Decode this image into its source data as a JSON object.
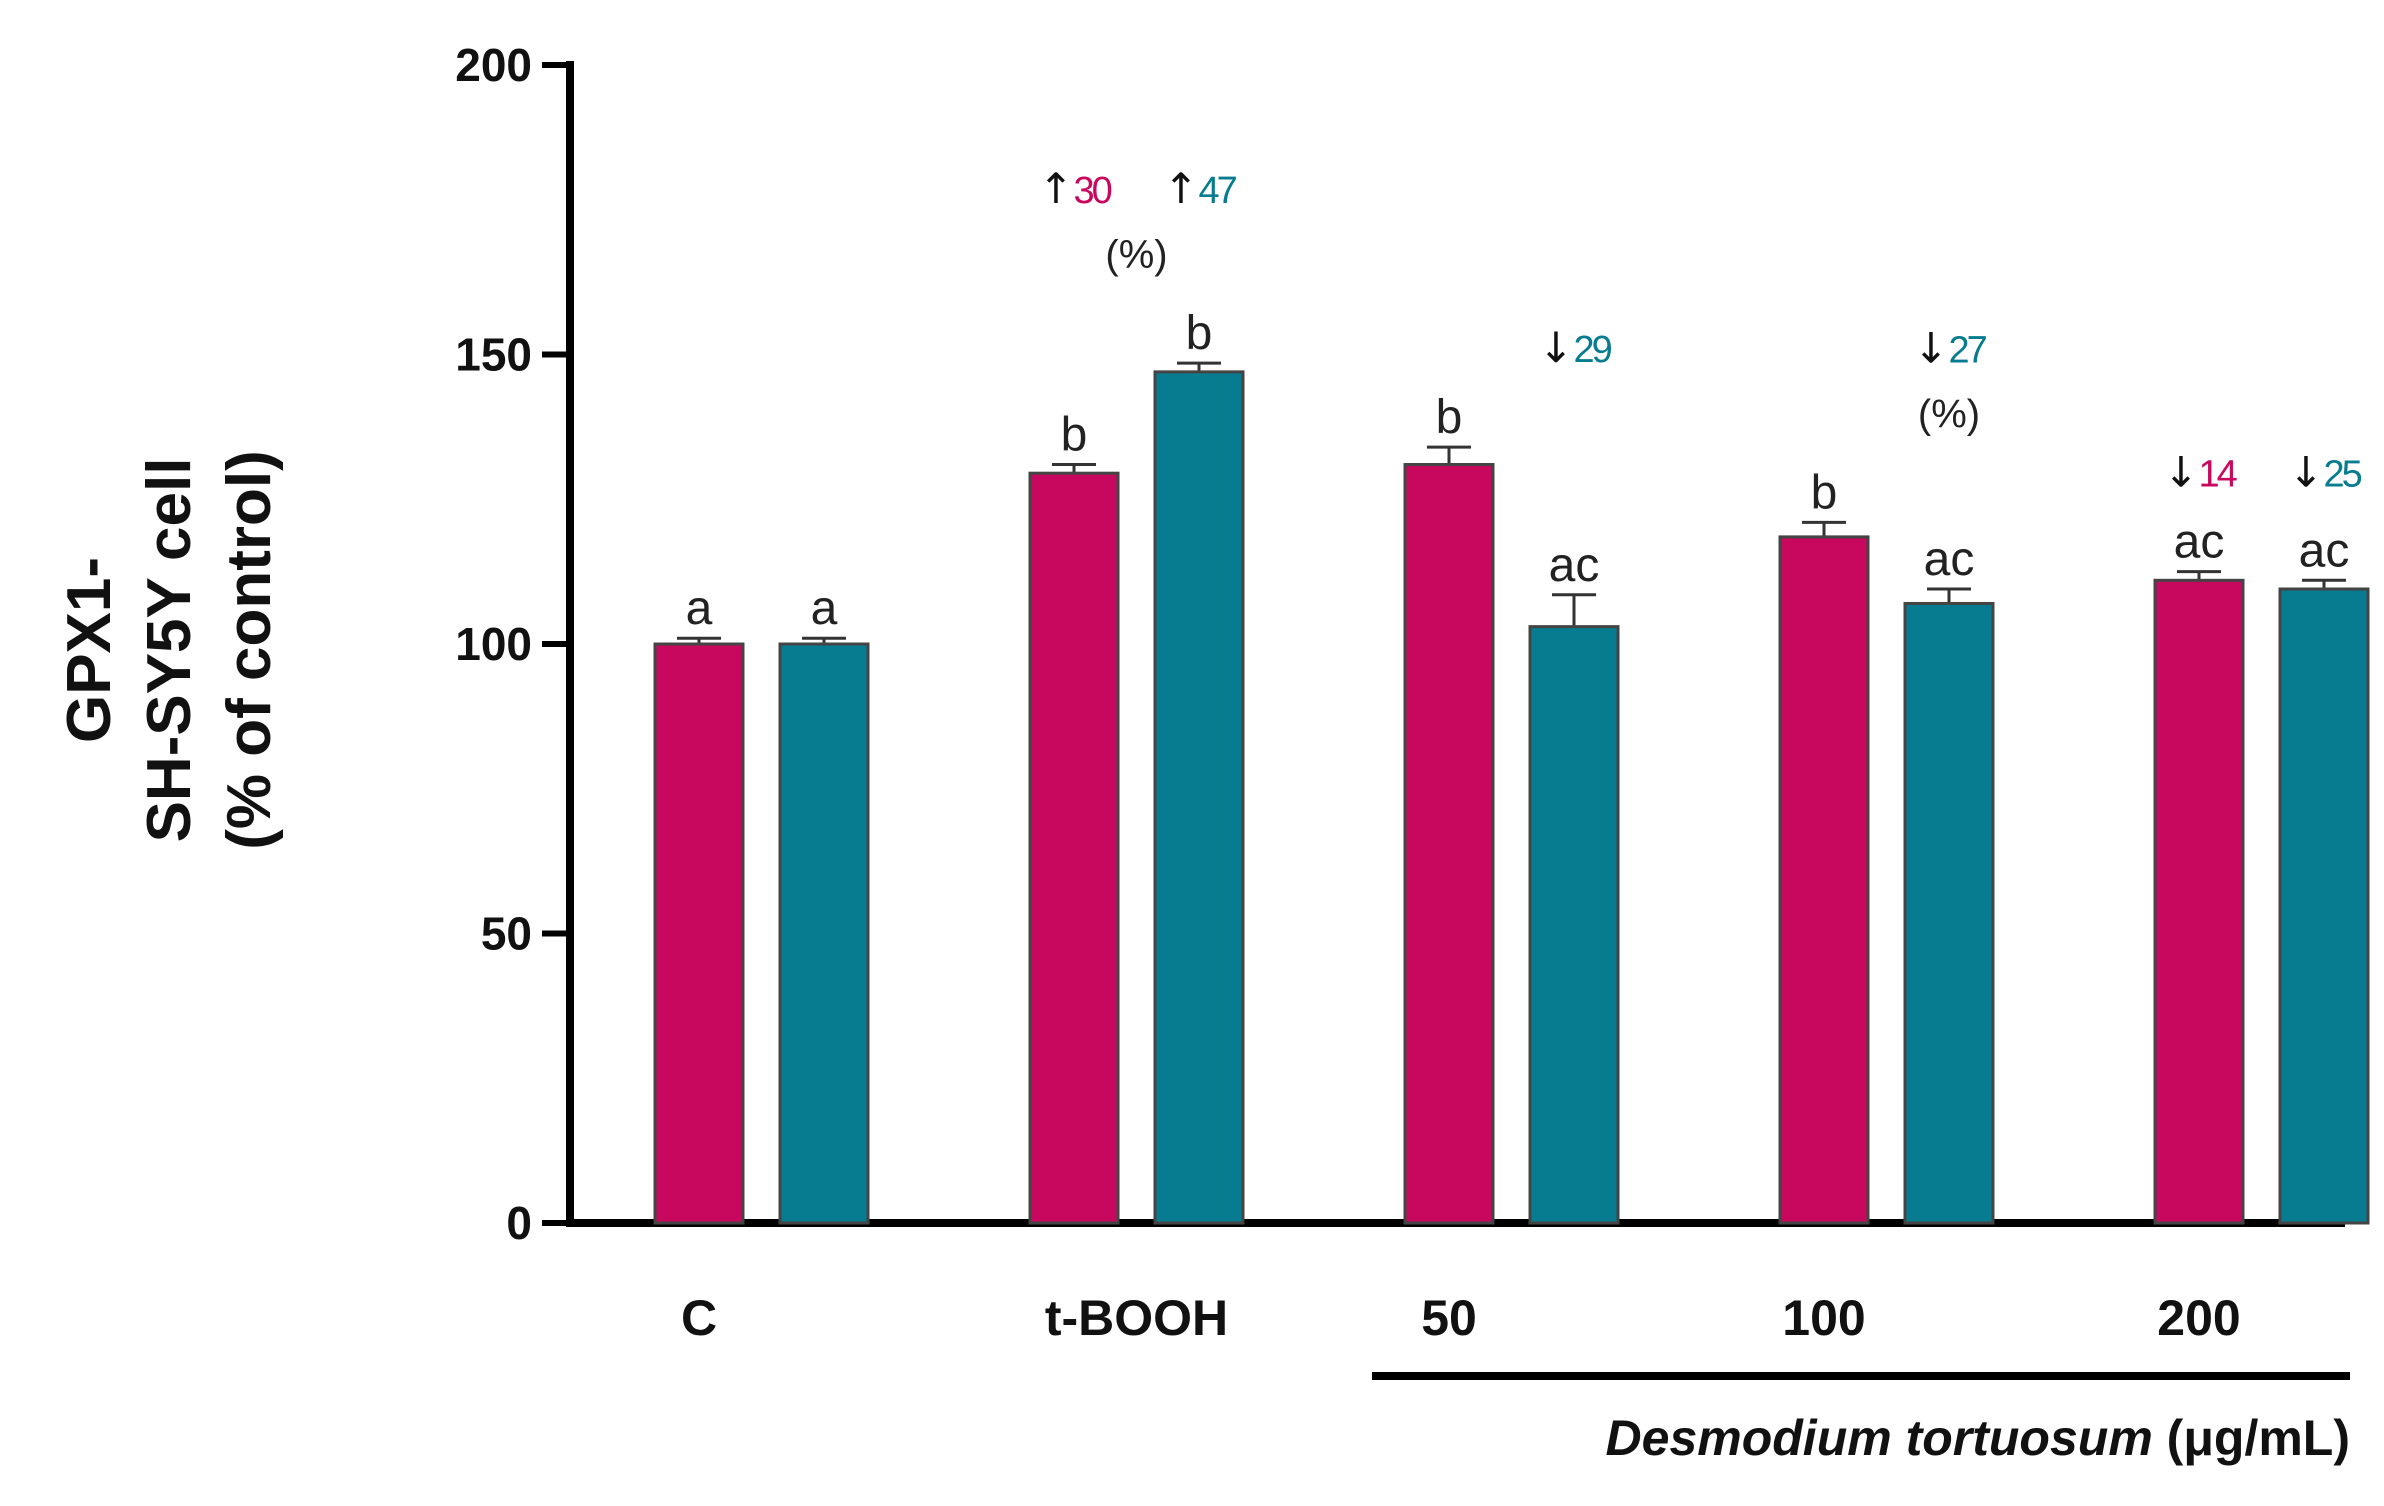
{
  "chart_data": {
    "type": "bar",
    "ylabel_lines": [
      "GPX1-",
      "SH-SY5Y cell",
      "(% of control)"
    ],
    "ylim": [
      0,
      200
    ],
    "yticks": [
      "0",
      "50",
      "100",
      "150",
      "200"
    ],
    "categories": [
      "C",
      "t-BOOH",
      "50",
      "100",
      "200"
    ],
    "xlabel_italic": "Desmodium tortuosum",
    "xlabel_unit": " (μg/mL)",
    "colors": {
      "magenta": "#c8075e",
      "teal": "#077c90"
    },
    "series": [
      {
        "color_key": "magenta",
        "values": [
          100,
          129.5,
          131,
          118.5,
          111
        ],
        "errors": [
          1,
          1.5,
          3,
          2.5,
          1.5
        ],
        "letters": [
          "a",
          "b",
          "b",
          "b",
          "ac"
        ]
      },
      {
        "color_key": "teal",
        "values": [
          100,
          147,
          103,
          107,
          109.5
        ],
        "errors": [
          1,
          1.5,
          5.5,
          2.5,
          1.5
        ],
        "letters": [
          "a",
          "b",
          "ac",
          "ac",
          "ac"
        ]
      }
    ],
    "annotations": [
      {
        "arrow": "↑",
        "value": "30",
        "color_key": "magenta",
        "group": 1,
        "series": 0
      },
      {
        "arrow": "↑",
        "value": "47",
        "color_key": "teal",
        "group": 1,
        "series": 1
      },
      {
        "arrow": "↓",
        "value": "29",
        "color_key": "teal",
        "group": 2,
        "series": 1
      },
      {
        "arrow": "↓",
        "value": "27",
        "color_key": "teal",
        "group": 3,
        "series": 1
      },
      {
        "arrow": "↓",
        "value": "14",
        "color_key": "magenta",
        "group": 4,
        "series": 0
      },
      {
        "arrow": "↓",
        "value": "25",
        "color_key": "teal",
        "group": 4,
        "series": 1
      }
    ],
    "percent_notes": [
      {
        "text": "(%)",
        "group": 1
      },
      {
        "text": "(%)",
        "group": 3
      }
    ]
  }
}
